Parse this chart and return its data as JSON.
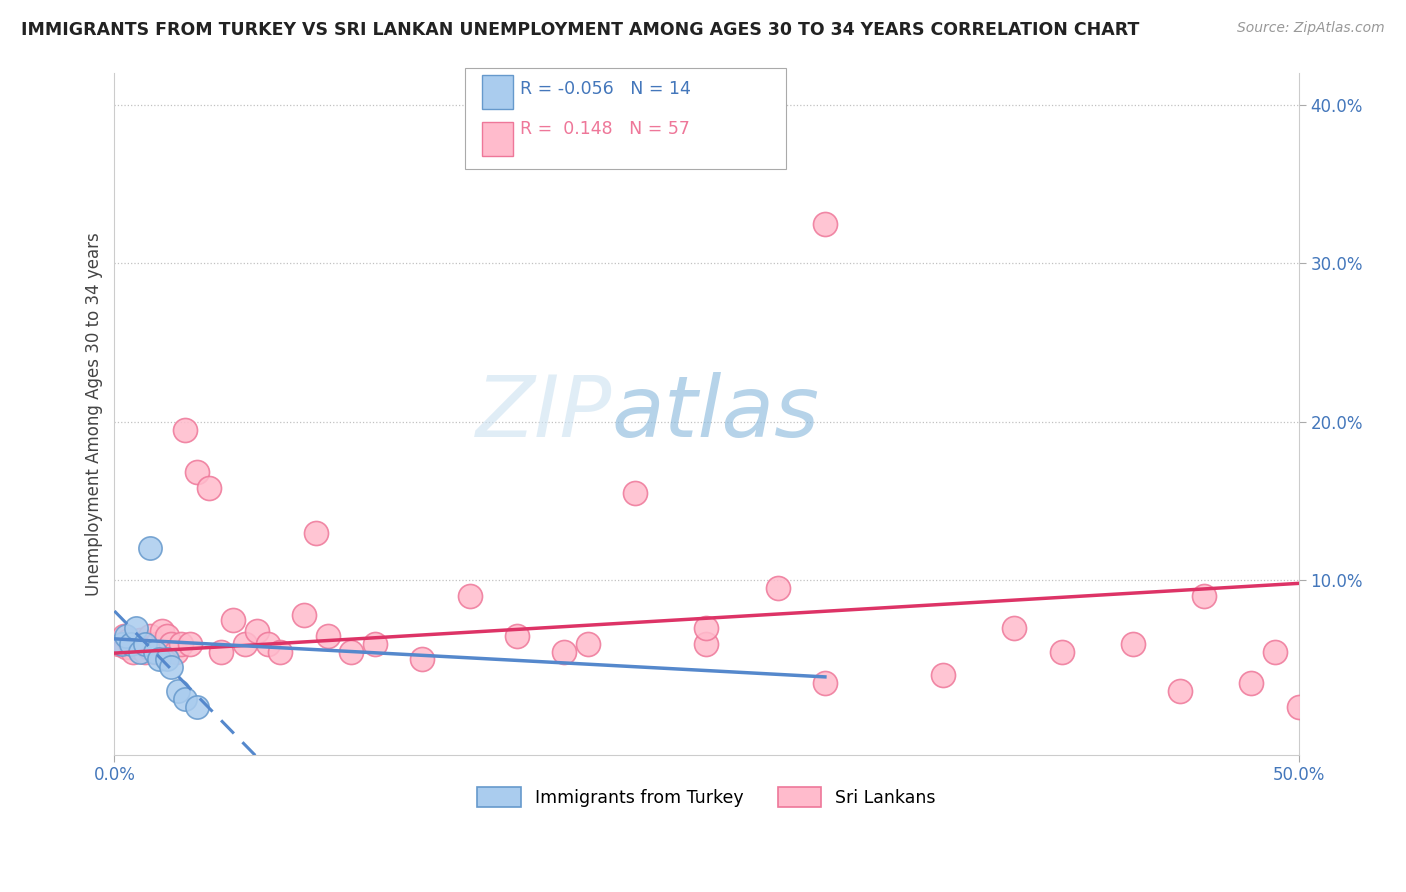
{
  "title": "IMMIGRANTS FROM TURKEY VS SRI LANKAN UNEMPLOYMENT AMONG AGES 30 TO 34 YEARS CORRELATION CHART",
  "source": "Source: ZipAtlas.com",
  "ylabel": "Unemployment Among Ages 30 to 34 years",
  "xlim": [
    0.0,
    0.5
  ],
  "ylim": [
    -0.01,
    0.42
  ],
  "xtick_positions": [
    0.0,
    0.5
  ],
  "xtick_labels": [
    "0.0%",
    "50.0%"
  ],
  "ytick_positions": [
    0.1,
    0.2,
    0.3,
    0.4
  ],
  "ytick_labels": [
    "10.0%",
    "20.0%",
    "30.0%",
    "40.0%"
  ],
  "background_color": "#ffffff",
  "grid_color": "#cccccc",
  "legend_R_turkey": "-0.056",
  "legend_N_turkey": "14",
  "legend_R_sri": "0.148",
  "legend_N_sri": "57",
  "turkey_color": "#aaccee",
  "turkey_edge_color": "#6699cc",
  "sri_color": "#ffbbcc",
  "sri_edge_color": "#ee7799",
  "turkey_line_color": "#5588cc",
  "sri_line_color": "#dd3366",
  "axis_tick_color": "#4477bb",
  "turkey_x": [
    0.003,
    0.005,
    0.007,
    0.009,
    0.011,
    0.013,
    0.015,
    0.017,
    0.019,
    0.022,
    0.024,
    0.027,
    0.03,
    0.035
  ],
  "turkey_y": [
    0.06,
    0.065,
    0.06,
    0.07,
    0.055,
    0.06,
    0.12,
    0.055,
    0.05,
    0.05,
    0.045,
    0.03,
    0.025,
    0.02
  ],
  "sri_x": [
    0.002,
    0.004,
    0.005,
    0.006,
    0.007,
    0.008,
    0.009,
    0.01,
    0.011,
    0.012,
    0.013,
    0.014,
    0.015,
    0.016,
    0.017,
    0.018,
    0.019,
    0.02,
    0.022,
    0.024,
    0.026,
    0.028,
    0.03,
    0.032,
    0.035,
    0.04,
    0.045,
    0.05,
    0.055,
    0.06,
    0.065,
    0.07,
    0.08,
    0.085,
    0.09,
    0.1,
    0.11,
    0.13,
    0.15,
    0.17,
    0.19,
    0.2,
    0.22,
    0.25,
    0.28,
    0.3,
    0.35,
    0.38,
    0.4,
    0.43,
    0.45,
    0.46,
    0.48,
    0.49,
    0.5,
    0.3,
    0.25
  ],
  "sri_y": [
    0.06,
    0.065,
    0.058,
    0.062,
    0.058,
    0.055,
    0.06,
    0.058,
    0.062,
    0.06,
    0.055,
    0.058,
    0.065,
    0.058,
    0.055,
    0.06,
    0.055,
    0.068,
    0.065,
    0.06,
    0.055,
    0.06,
    0.195,
    0.06,
    0.168,
    0.158,
    0.055,
    0.075,
    0.06,
    0.068,
    0.06,
    0.055,
    0.078,
    0.13,
    0.065,
    0.055,
    0.06,
    0.05,
    0.09,
    0.065,
    0.055,
    0.06,
    0.155,
    0.06,
    0.095,
    0.035,
    0.04,
    0.07,
    0.055,
    0.06,
    0.03,
    0.09,
    0.035,
    0.055,
    0.02,
    0.325,
    0.07
  ]
}
